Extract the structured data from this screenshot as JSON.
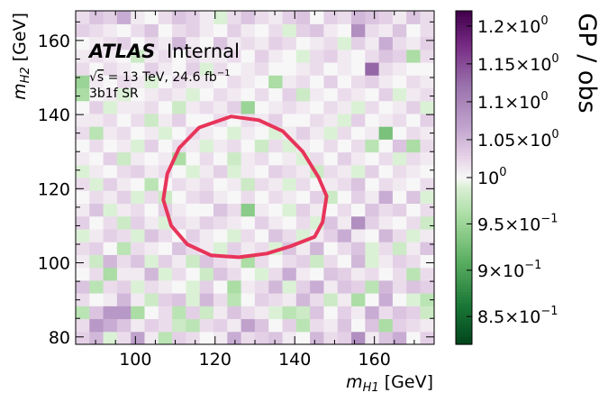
{
  "chart_data": {
    "type": "heatmap",
    "xlabel": "m_H1 [GeV]",
    "ylabel": "m_H2 [GeV]",
    "xlabel_main": "m",
    "xlabel_sub": "H1",
    "xlabel_unit": " [GeV]",
    "ylabel_main": "m",
    "ylabel_sub": "H2",
    "ylabel_unit": " [GeV]",
    "xlim": [
      85,
      175
    ],
    "ylim": [
      78,
      168
    ],
    "xticks": [
      100,
      120,
      140,
      160
    ],
    "yticks": [
      80,
      100,
      120,
      140,
      160
    ],
    "xtick_labels": [
      "100",
      "120",
      "140",
      "160"
    ],
    "ytick_labels": [
      "80",
      "100",
      "120",
      "140",
      "160"
    ],
    "colorbar": {
      "title": "GP / obs",
      "range": [
        0.82,
        1.22
      ],
      "ticks": [
        0.85,
        0.9,
        0.95,
        1.0,
        1.05,
        1.1,
        1.15,
        1.2
      ],
      "tick_labels": [
        {
          "mant": "8.5",
          "exp": "−1"
        },
        {
          "mant": "9",
          "exp": "−1"
        },
        {
          "mant": "9.5",
          "exp": "−1"
        },
        {
          "mant": "",
          "exp": "0"
        },
        {
          "mant": "1.05",
          "exp": "0"
        },
        {
          "mant": "1.1",
          "exp": "0"
        },
        {
          "mant": "1.15",
          "exp": "0"
        },
        {
          "mant": "1.2",
          "exp": "0"
        }
      ],
      "colormap": "PRGn-reversed (green = low, white = 1, purple = high)"
    },
    "bin_grid": {
      "nx": 26,
      "ny": 26,
      "x_start": 85,
      "y_start": 78,
      "bin_width": 3.46
    },
    "values": [
      [
        1.03,
        1.05,
        0.99,
        1.02,
        1.07,
        1.01,
        0.97,
        1.03,
        1.02,
        1.0,
        1.01,
        1.06,
        1.02,
        1.03,
        1.04,
        1.01,
        1.0,
        1.05,
        1.02,
        1.03,
        1.09,
        1.01,
        1.04,
        1.06,
        1.0,
        1.03
      ],
      [
        1.02,
        1.08,
        1.06,
        1.04,
        1.01,
        1.03,
        1.02,
        0.98,
        0.97,
        1.02,
        1.03,
        1.01,
        1.07,
        1.04,
        1.0,
        1.03,
        0.97,
        1.02,
        1.01,
        1.04,
        1.0,
        1.04,
        0.96,
        1.03,
        1.02,
        1.01
      ],
      [
        0.97,
        1.04,
        1.08,
        1.08,
        0.96,
        1.0,
        1.02,
        0.97,
        1.03,
        0.98,
        1.01,
        1.04,
        1.02,
        1.01,
        0.99,
        0.97,
        0.98,
        1.04,
        1.0,
        1.03,
        1.01,
        1.06,
        1.02,
        1.04,
        1.03,
        0.98
      ],
      [
        1.02,
        1.0,
        1.01,
        1.05,
        1.01,
        0.98,
        1.03,
        1.04,
        0.99,
        1.05,
        1.02,
        0.97,
        1.0,
        1.03,
        1.02,
        1.01,
        1.05,
        1.02,
        0.98,
        1.01,
        0.96,
        1.0,
        1.06,
        1.0,
        0.99,
        0.97
      ],
      [
        1.04,
        0.97,
        1.02,
        1.03,
        0.99,
        1.02,
        1.01,
        1.0,
        0.99,
        1.03,
        1.0,
        0.96,
        1.01,
        1.02,
        1.05,
        0.99,
        1.03,
        1.06,
        1.01,
        1.04,
        1.03,
        0.97,
        1.05,
        1.02,
        1.04,
        1.03
      ],
      [
        1.0,
        1.02,
        0.96,
        1.01,
        1.01,
        1.05,
        0.99,
        1.02,
        1.0,
        0.98,
        1.04,
        1.02,
        1.0,
        0.99,
        1.02,
        1.06,
        1.01,
        1.0,
        1.04,
        1.03,
        1.01,
        1.02,
        1.0,
        1.02,
        0.97,
        1.02
      ],
      [
        1.01,
        0.98,
        1.05,
        1.02,
        1.04,
        0.99,
        1.03,
        1.01,
        0.98,
        1.04,
        1.02,
        1.01,
        0.96,
        1.02,
        1.0,
        1.02,
        1.03,
        0.98,
        1.02,
        1.0,
        1.05,
        0.99,
        1.01,
        1.03,
        1.02,
        1.0
      ],
      [
        1.02,
        1.03,
        1.0,
        0.97,
        1.02,
        1.01,
        1.0,
        1.04,
        1.02,
        1.01,
        0.99,
        1.03,
        1.01,
        1.02,
        0.99,
        1.04,
        1.01,
        1.05,
        1.0,
        1.02,
        1.04,
        0.99,
        1.02,
        0.98,
        1.01,
        1.04
      ],
      [
        0.99,
        1.01,
        1.03,
        1.02,
        0.99,
        1.04,
        1.02,
        1.0,
        1.03,
        1.01,
        1.0,
        0.99,
        1.02,
        1.0,
        1.04,
        1.02,
        0.99,
        1.01,
        1.03,
        1.06,
        1.01,
        1.0,
        1.05,
        1.02,
        0.99,
        1.01
      ],
      [
        1.03,
        1.0,
        1.02,
        0.98,
        1.03,
        1.01,
        0.99,
        1.02,
        1.01,
        1.03,
        1.02,
        1.01,
        1.0,
        1.03,
        1.01,
        1.0,
        1.02,
        0.99,
        1.04,
        1.01,
        1.09,
        1.03,
        1.01,
        1.0,
        1.02,
        0.98
      ],
      [
        1.01,
        1.04,
        0.99,
        1.01,
        1.02,
        1.0,
        1.03,
        1.01,
        1.0,
        1.0,
        1.04,
        1.02,
        0.94,
        1.01,
        1.0,
        0.99,
        1.03,
        1.01,
        1.0,
        1.02,
        1.0,
        1.04,
        1.02,
        1.03,
        1.0,
        1.02
      ],
      [
        1.0,
        1.02,
        1.01,
        1.03,
        0.99,
        1.02,
        0.98,
        1.0,
        1.02,
        1.03,
        1.01,
        1.0,
        1.02,
        1.0,
        1.02,
        1.01,
        1.0,
        1.03,
        0.98,
        1.0,
        1.03,
        1.01,
        1.06,
        1.0,
        1.04,
        0.99
      ],
      [
        1.02,
        0.99,
        1.03,
        1.01,
        1.0,
        0.97,
        1.0,
        1.02,
        1.01,
        1.02,
        1.0,
        1.01,
        0.98,
        1.02,
        1.01,
        0.99,
        1.02,
        1.0,
        1.01,
        1.02,
        1.04,
        1.0,
        1.02,
        1.01,
        1.0,
        1.02
      ],
      [
        0.99,
        1.01,
        1.0,
        1.02,
        1.03,
        1.01,
        1.02,
        1.0,
        0.99,
        1.01,
        1.03,
        0.99,
        1.01,
        1.0,
        1.03,
        1.02,
        1.01,
        0.98,
        1.02,
        1.01,
        0.99,
        1.03,
        1.0,
        1.02,
        1.01,
        1.0
      ],
      [
        1.01,
        1.0,
        1.03,
        0.98,
        1.01,
        1.0,
        1.01,
        0.96,
        1.0,
        1.02,
        1.0,
        0.98,
        1.01,
        1.02,
        1.0,
        1.01,
        0.99,
        1.02,
        1.0,
        1.03,
        1.01,
        1.0,
        1.02,
        0.99,
        1.02,
        1.01
      ],
      [
        1.0,
        1.02,
        1.0,
        1.01,
        0.99,
        1.03,
        1.0,
        1.02,
        1.01,
        0.99,
        1.01,
        1.02,
        1.0,
        0.98,
        1.02,
        0.99,
        1.01,
        1.0,
        1.02,
        1.0,
        1.02,
        0.97,
        1.0,
        1.04,
        0.96,
        1.02
      ],
      [
        1.02,
        0.97,
        1.01,
        1.02,
        1.0,
        1.01,
        0.99,
        1.0,
        1.02,
        1.01,
        1.0,
        0.99,
        1.01,
        1.0,
        0.99,
        1.01,
        1.03,
        1.01,
        0.99,
        1.02,
        1.0,
        1.01,
        0.93,
        1.0,
        1.02,
        1.01
      ],
      [
        1.01,
        1.01,
        1.02,
        1.0,
        1.02,
        0.98,
        1.01,
        1.03,
        1.0,
        1.0,
        1.02,
        1.0,
        1.02,
        1.01,
        1.03,
        1.0,
        1.0,
        1.02,
        1.01,
        0.99,
        1.03,
        1.0,
        1.01,
        1.02,
        1.0,
        1.03
      ],
      [
        1.0,
        1.03,
        0.99,
        1.01,
        1.01,
        1.02,
        1.0,
        0.98,
        1.01,
        1.02,
        1.01,
        1.03,
        0.95,
        1.0,
        1.01,
        1.02,
        1.01,
        1.0,
        1.02,
        1.01,
        0.99,
        1.02,
        1.0,
        1.01,
        1.03,
        0.99
      ],
      [
        0.96,
        1.0,
        1.01,
        0.99,
        1.0,
        1.01,
        1.02,
        1.01,
        0.99,
        1.0,
        1.02,
        1.01,
        1.0,
        1.02,
        1.0,
        1.03,
        0.98,
        1.01,
        1.0,
        1.02,
        1.01,
        1.0,
        1.03,
        0.99,
        1.01,
        1.02
      ],
      [
        0.95,
        1.01,
        1.0,
        1.02,
        1.01,
        0.99,
        1.0,
        1.02,
        1.01,
        1.01,
        1.0,
        1.02,
        1.01,
        1.0,
        0.96,
        1.01,
        1.02,
        1.0,
        1.03,
        1.0,
        1.02,
        1.03,
        1.01,
        1.0,
        1.02,
        1.01
      ],
      [
        1.02,
        1.0,
        1.02,
        1.01,
        1.0,
        1.03,
        1.01,
        1.0,
        1.03,
        0.99,
        1.02,
        1.0,
        1.01,
        1.02,
        1.0,
        1.0,
        1.01,
        1.02,
        1.0,
        1.01,
        1.0,
        1.13,
        1.02,
        1.01,
        1.0,
        1.0
      ],
      [
        1.01,
        1.02,
        1.01,
        1.0,
        0.98,
        1.01,
        1.02,
        1.0,
        1.02,
        1.01,
        1.01,
        1.02,
        1.0,
        1.03,
        1.01,
        1.0,
        0.99,
        1.02,
        1.03,
        1.01,
        1.0,
        1.02,
        1.04,
        1.03,
        0.96,
        1.02
      ],
      [
        1.0,
        1.01,
        1.02,
        1.03,
        1.0,
        1.02,
        1.01,
        1.05,
        1.01,
        1.0,
        1.04,
        1.01,
        1.02,
        1.01,
        1.03,
        1.02,
        1.0,
        1.01,
        1.02,
        0.99,
        1.03,
        1.01,
        1.06,
        1.02,
        1.01,
        1.03
      ],
      [
        1.03,
        1.02,
        1.01,
        1.0,
        1.02,
        1.04,
        1.0,
        1.02,
        1.03,
        1.01,
        1.0,
        1.03,
        1.01,
        1.0,
        1.02,
        0.99,
        1.03,
        1.04,
        1.01,
        1.0,
        1.09,
        1.02,
        1.01,
        1.04,
        1.0,
        1.02
      ],
      [
        1.02,
        1.04,
        1.03,
        1.06,
        1.01,
        1.0,
        1.02,
        1.04,
        1.03,
        1.01,
        0.99,
        1.02,
        1.04,
        1.02,
        1.01,
        1.03,
        1.04,
        1.0,
        1.03,
        1.02,
        1.05,
        1.04,
        1.03,
        1.01,
        1.04,
        1.02
      ]
    ],
    "contour": {
      "color": "#e8345a",
      "points": [
        [
          124,
          139.5
        ],
        [
          131,
          138.5
        ],
        [
          137,
          135.5
        ],
        [
          142,
          130
        ],
        [
          146,
          123
        ],
        [
          148,
          118
        ],
        [
          147,
          111
        ],
        [
          145,
          107
        ],
        [
          139,
          104.5
        ],
        [
          133,
          102.5
        ],
        [
          126,
          101.5
        ],
        [
          119,
          102
        ],
        [
          113,
          105
        ],
        [
          109,
          110
        ],
        [
          107,
          117
        ],
        [
          108,
          124
        ],
        [
          111,
          131
        ],
        [
          116,
          136.5
        ],
        [
          124,
          139.5
        ]
      ]
    },
    "annotations": {
      "atlas": "ATLAS",
      "internal": "Internal",
      "energy_sqrt": "√",
      "energy_s": "s",
      "energy_text": " = 13 TeV, 24.6 fb",
      "energy_exp": "−1",
      "region": "3b1f SR"
    }
  }
}
